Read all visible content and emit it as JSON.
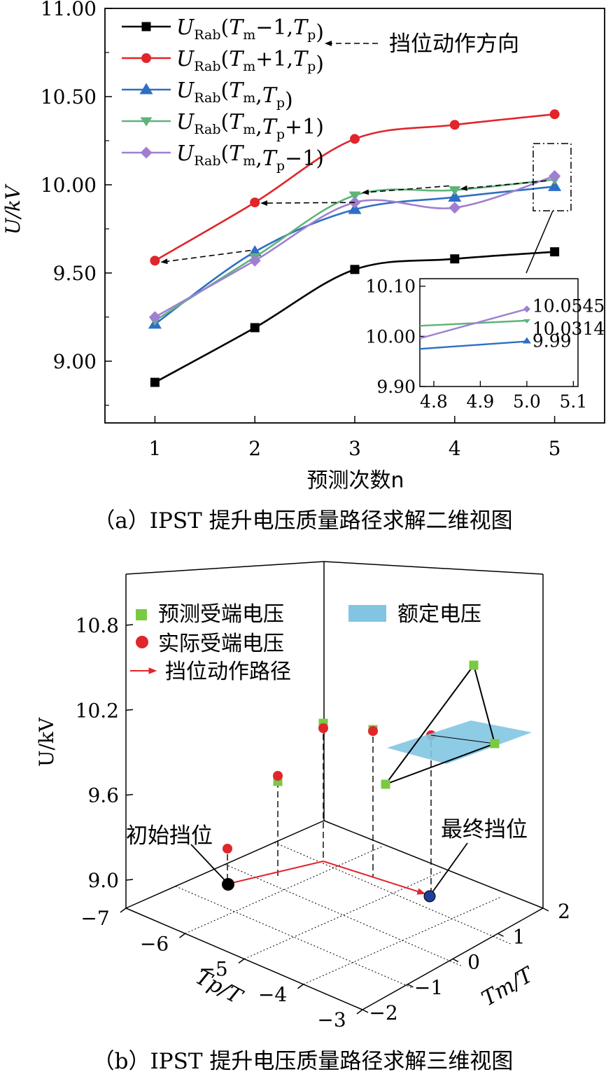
{
  "chart_data": [
    {
      "type": "line",
      "caption": "（a）IPST 提升电压质量路径求解二维视图",
      "xlabel": "预测次数n",
      "ylabel": "U/kV",
      "x": [
        1,
        2,
        3,
        4,
        5
      ],
      "xticks": [
        "1",
        "2",
        "3",
        "4",
        "5"
      ],
      "yticks": [
        "9.00",
        "9.50",
        "10.00",
        "10.50",
        "11.00"
      ],
      "xlim": [
        0.5,
        5.5
      ],
      "ylim": [
        8.65,
        11.0
      ],
      "series": [
        {
          "name": "URab(Tm−1,Tp)",
          "color": "#000000",
          "marker": "square",
          "values": [
            8.88,
            9.19,
            9.52,
            9.58,
            9.62
          ]
        },
        {
          "name": "URab(Tm+1,Tp)",
          "color": "#e0262b",
          "marker": "circle",
          "values": [
            9.57,
            9.9,
            10.26,
            10.34,
            10.4
          ]
        },
        {
          "name": "URab(Tm,Tp)",
          "color": "#2e6fc4",
          "marker": "triangle-up",
          "values": [
            9.21,
            9.62,
            9.86,
            9.93,
            9.99
          ]
        },
        {
          "name": "URab(Tm,Tp+1)",
          "color": "#5fb37a",
          "marker": "triangle-down",
          "values": [
            9.23,
            9.59,
            9.94,
            9.97,
            10.03
          ]
        },
        {
          "name": "URab(Tm,Tp−1)",
          "color": "#a07fd0",
          "marker": "diamond",
          "values": [
            9.25,
            9.57,
            9.9,
            9.87,
            10.05
          ]
        }
      ],
      "annotation": "挡位动作方向",
      "inset": {
        "xticks": [
          "4.8",
          "4.9",
          "5.0",
          "5.1"
        ],
        "yticks": [
          "9.90",
          "10.00",
          "10.10"
        ],
        "xlim": [
          4.77,
          5.11
        ],
        "ylim": [
          9.9,
          10.115
        ],
        "labels": [
          "10.0545",
          "10.0314",
          "9.99"
        ],
        "lines": [
          {
            "color": "#5fb37a",
            "x": [
              4.77,
              5.0
            ],
            "y": [
              10.021,
              10.0314
            ]
          },
          {
            "color": "#a07fd0",
            "x": [
              4.77,
              5.0
            ],
            "y": [
              9.996,
              10.0545
            ]
          },
          {
            "color": "#2e6fc4",
            "x": [
              4.77,
              5.0
            ],
            "y": [
              9.975,
              9.99
            ]
          }
        ]
      }
    },
    {
      "type": "scatter",
      "caption": "（b）IPST 提升电压质量路径求解三维视图",
      "zlabel": "U/kV",
      "xlabel": "Tp/T",
      "ylabel": "Tm/T",
      "zticks": [
        "9.0",
        "9.6",
        "10.2",
        "10.8"
      ],
      "xticks": [
        "−7",
        "−6",
        "−5",
        "−4",
        "−3"
      ],
      "yticks": [
        "−2",
        "−1",
        "0",
        "1",
        "2"
      ],
      "zlim": [
        8.8,
        11.1
      ],
      "legend": [
        "预测受端电压",
        "实际受端电压",
        "挡位动作路径",
        "额定电压"
      ],
      "labels": {
        "start": "初始挡位",
        "end": "最终挡位"
      },
      "colors": {
        "predicted": "#7ac943",
        "actual": "#e0262b",
        "path": "#e0262b",
        "rated": "#82c5e2",
        "start": "#000000",
        "end": "#1f3f9a"
      },
      "rated_voltage": 10.0,
      "points": [
        {
          "tp": -6,
          "tm": -1,
          "predicted": null,
          "actual": 9.25
        },
        {
          "tp": -5,
          "tm": -1,
          "predicted": 9.7,
          "actual": 9.75
        },
        {
          "tp": -4,
          "tm": -1,
          "predicted": 10.16,
          "actual": 10.1
        },
        {
          "tp": -4,
          "tm": 0,
          "predicted": 10.12,
          "actual": 10.1
        },
        {
          "tp": -4,
          "tm": 1,
          "predicted": null,
          "actual": 10.09
        }
      ],
      "triangle": [
        10.65,
        9.98,
        9.52
      ]
    }
  ]
}
